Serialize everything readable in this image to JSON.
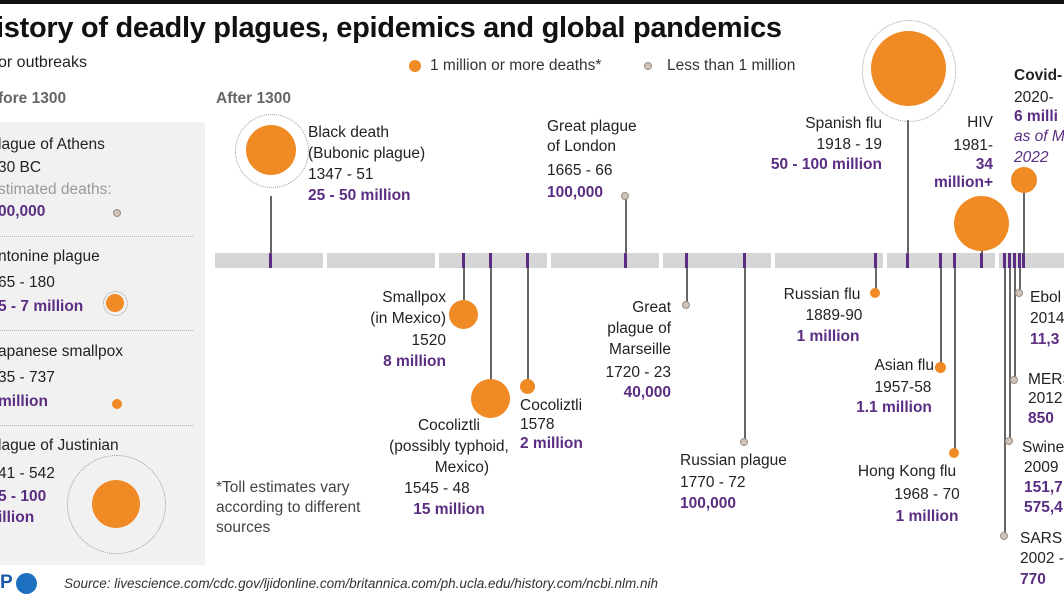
{
  "header": {
    "title": "istory of deadly plagues, epidemics and global pandemics",
    "subtitle": "or outbreaks"
  },
  "legend": {
    "major_label": "1 million or more deaths*",
    "minor_label": "Less than 1 million",
    "major_color": "#ef8a24",
    "minor_color": "#cfc3b8"
  },
  "sections": {
    "before": "fore 1300",
    "after": "After 1300"
  },
  "before_1300": [
    {
      "name": "lague of Athens",
      "years": "30 BC",
      "est_label": "stimated deaths:",
      "toll": "00,000"
    },
    {
      "name": "ntonine plague",
      "years": "65 - 180",
      "toll": "5 - 7 million"
    },
    {
      "name": "apanese smallpox",
      "years": "35 - 737",
      "toll": "million"
    },
    {
      "name": "lague of Justinian",
      "years": "41 - 542",
      "toll_line1": "5 - 100",
      "toll_line2": "illion"
    }
  ],
  "events": {
    "black_death": {
      "name1": "Black death",
      "name2": "(Bubonic plague)",
      "years": "1347 - 51",
      "toll": "25 - 50 million"
    },
    "smallpox_mexico": {
      "name1": "Smallpox",
      "name2": "(in Mexico)",
      "years": "1520",
      "toll": "8 million"
    },
    "cocoliztli_1545": {
      "name1": "Cocoliztli",
      "name2": "(possibly typhoid,",
      "name3": "Mexico)",
      "years": "1545 - 48",
      "toll": "15 million"
    },
    "cocoliztli_1578": {
      "name": "Cocoliztli",
      "years": "1578",
      "toll": "2 million"
    },
    "london": {
      "name1": "Great plague",
      "name2": "of London",
      "years": "1665 - 66",
      "toll": "100,000"
    },
    "marseille": {
      "name1": "Great",
      "name2": "plague of",
      "name3": "Marseille",
      "years": "1720 - 23",
      "toll": "40,000"
    },
    "russian_plague": {
      "name": "Russian plague",
      "years": "1770 - 72",
      "toll": "100,000"
    },
    "russian_flu": {
      "name": "Russian flu",
      "years": "1889-90",
      "toll": "1 million"
    },
    "spanish_flu": {
      "name": "Spanish flu",
      "years": "1918 - 19",
      "toll": "50 - 100 million"
    },
    "asian_flu": {
      "name": "Asian flu",
      "years": "1957-58",
      "toll": "1.1 million"
    },
    "hong_kong_flu": {
      "name": "Hong Kong flu",
      "years": "1968 - 70",
      "toll": "1 million"
    },
    "hiv": {
      "name": "HIV",
      "years": "1981-",
      "toll1": "34",
      "toll2": "million+"
    },
    "covid": {
      "name": "Covid-",
      "years": "2020-",
      "toll": "6 milli",
      "note1": "as of M",
      "note2": "2022"
    },
    "ebola": {
      "name": "Ebol",
      "years": "2014",
      "toll": "11,3"
    },
    "mers": {
      "name": "MERS",
      "years": "2012",
      "toll": "850"
    },
    "swine": {
      "name": "Swine",
      "years": "2009",
      "toll1": "151,7",
      "toll2": "575,4"
    },
    "sars": {
      "name": "SARS",
      "years": "2002 -",
      "toll": "770"
    }
  },
  "footnote": {
    "line1": "*Toll estimates vary",
    "line2": "according to different",
    "line3": "sources"
  },
  "source": "Source: livescience.com/cdc.gov/ljidonline.com/britannica.com/ph.ucla.edu/history.com/ncbi.nlm.nih",
  "logo_text": "P"
}
